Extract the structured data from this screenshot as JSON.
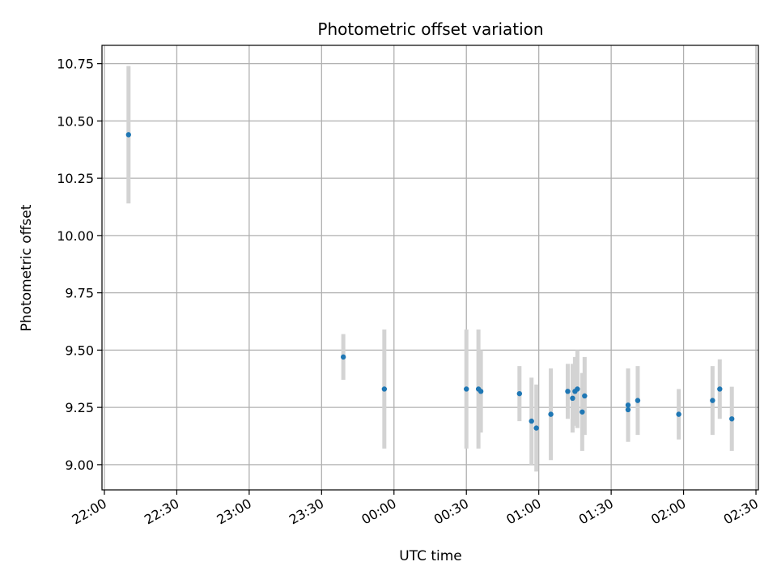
{
  "chart_data": {
    "type": "scatter",
    "title": "Photometric offset variation",
    "xlabel": "UTC time",
    "ylabel": "Photometric offset",
    "xlim": [
      "21:59",
      "02:31"
    ],
    "ylim": [
      8.89,
      10.83
    ],
    "x_ticks": [
      "22:00",
      "22:30",
      "23:00",
      "23:30",
      "00:00",
      "00:30",
      "01:00",
      "01:30",
      "02:00",
      "02:30"
    ],
    "y_ticks": [
      "9.00",
      "9.25",
      "9.50",
      "9.75",
      "10.00",
      "10.25",
      "10.50",
      "10.75"
    ],
    "grid": true,
    "series": [
      {
        "marker_color": "#1f77b4",
        "errorbar_color": "#d3d3d3",
        "points": [
          {
            "t": "22:10",
            "y": 10.44,
            "err": 0.3
          },
          {
            "t": "23:39",
            "y": 9.47,
            "err": 0.1
          },
          {
            "t": "23:56",
            "y": 9.33,
            "err": 0.26
          },
          {
            "t": "00:30",
            "y": 9.33,
            "err": 0.26
          },
          {
            "t": "00:35",
            "y": 9.33,
            "err": 0.26
          },
          {
            "t": "00:36",
            "y": 9.32,
            "err": 0.18
          },
          {
            "t": "00:52",
            "y": 9.31,
            "err": 0.12
          },
          {
            "t": "00:57",
            "y": 9.19,
            "err": 0.19
          },
          {
            "t": "00:59",
            "y": 9.16,
            "err": 0.19
          },
          {
            "t": "01:05",
            "y": 9.22,
            "err": 0.2
          },
          {
            "t": "01:12",
            "y": 9.32,
            "err": 0.12
          },
          {
            "t": "01:14",
            "y": 9.29,
            "err": 0.15
          },
          {
            "t": "01:15",
            "y": 9.32,
            "err": 0.15
          },
          {
            "t": "01:16",
            "y": 9.33,
            "err": 0.17
          },
          {
            "t": "01:18",
            "y": 9.23,
            "err": 0.17
          },
          {
            "t": "01:19",
            "y": 9.3,
            "err": 0.17
          },
          {
            "t": "01:37",
            "y": 9.24,
            "err": 0.14
          },
          {
            "t": "01:37",
            "y": 9.26,
            "err": 0.16
          },
          {
            "t": "01:41",
            "y": 9.28,
            "err": 0.15
          },
          {
            "t": "01:58",
            "y": 9.22,
            "err": 0.11
          },
          {
            "t": "02:12",
            "y": 9.28,
            "err": 0.15
          },
          {
            "t": "02:15",
            "y": 9.33,
            "err": 0.13
          },
          {
            "t": "02:20",
            "y": 9.2,
            "err": 0.14
          }
        ]
      }
    ]
  }
}
